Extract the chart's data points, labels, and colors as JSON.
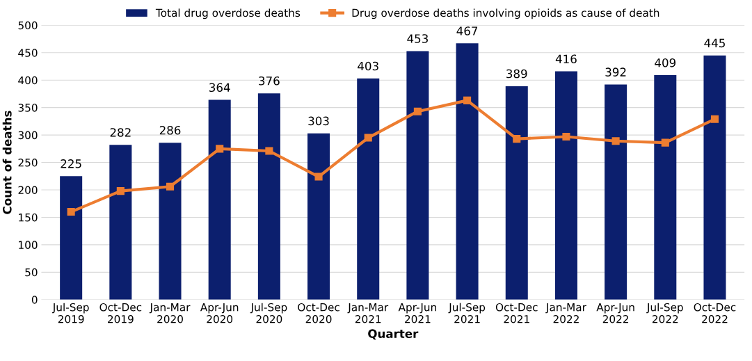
{
  "chart_data": {
    "type": "bar",
    "xlabel": "Quarter",
    "ylabel": "Count of deaths",
    "categories": [
      "Jul-Sep\n2019",
      "Oct-Dec\n2019",
      "Jan-Mar\n2020",
      "Apr-Jun\n2020",
      "Jul-Sep\n2020",
      "Oct-Dec\n2020",
      "Jan-Mar\n2021",
      "Apr-Jun\n2021",
      "Jul-Sep\n2021",
      "Oct-Dec\n2021",
      "Jan-Mar\n2022",
      "Apr-Jun\n2022",
      "Jul-Sep\n2022",
      "Oct-Dec\n2022"
    ],
    "series": [
      {
        "name": "Total drug overdose deaths",
        "color": "#0c1f6e",
        "values": [
          225,
          282,
          286,
          364,
          376,
          303,
          403,
          453,
          467,
          389,
          416,
          392,
          409,
          445
        ],
        "value_labels": [
          "225",
          "282",
          "286",
          "364",
          "376",
          "303",
          "403",
          "453",
          "467",
          "389",
          "416",
          "392",
          "409",
          "445"
        ]
      },
      {
        "name": "Drug overdose deaths involving opioids as cause of death",
        "type": "line",
        "color": "#ed7d31",
        "marker": "square",
        "values": [
          160,
          198,
          206,
          275,
          271,
          224,
          295,
          343,
          363,
          293,
          297,
          289,
          286,
          329
        ]
      }
    ],
    "ylim": [
      0,
      500
    ],
    "yticks": [
      0,
      50,
      100,
      150,
      200,
      250,
      300,
      350,
      400,
      450,
      500
    ],
    "grid": "y",
    "legend": "top"
  }
}
